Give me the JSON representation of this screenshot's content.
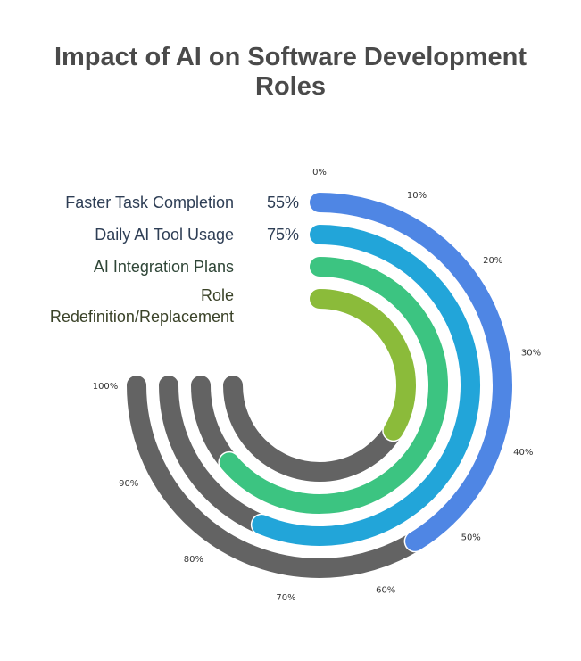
{
  "chart_data": {
    "type": "radial_bar",
    "title": "Impact of AI on Software Development Roles",
    "title_lines": [
      "Impact of AI on Software Development",
      "Roles"
    ],
    "scale": {
      "min": 0,
      "max": 100,
      "sweep_degrees": 270
    },
    "tick_labels": [
      "0%",
      "10%",
      "20%",
      "30%",
      "40%",
      "50%",
      "60%",
      "70%",
      "80%",
      "90%",
      "100%"
    ],
    "track_color": "#636363",
    "categories": [
      {
        "name": "Faster Task Completion",
        "value": 55,
        "value_label": "55%",
        "color": "#4f86e4",
        "label_color": "#2e3e55"
      },
      {
        "name": "Daily AI Tool Usage",
        "value": 75,
        "value_label": "75%",
        "color": "#22a5d9",
        "label_color": "#2e3e55"
      },
      {
        "name": "AI Integration Plans",
        "value": 85,
        "value_label": "",
        "color": "#3cc481",
        "label_color": "#2e4536"
      },
      {
        "name": "Role Redefinition/Replacement",
        "name_lines": [
          "Role",
          "Redefinition/Replacement"
        ],
        "value": 45,
        "value_label": "",
        "color": "#8bbb3a",
        "label_color": "#3a4228"
      }
    ]
  }
}
